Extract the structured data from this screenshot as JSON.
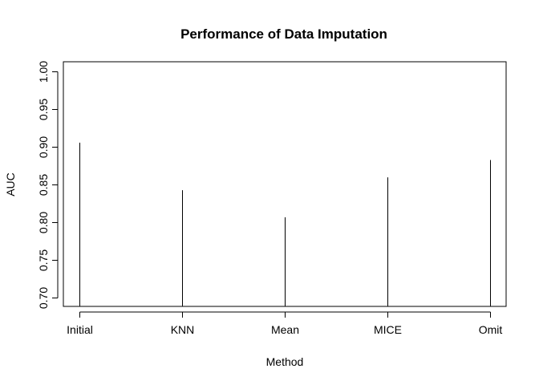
{
  "chart_data": {
    "type": "bar",
    "title": "Performance of Data Imputation",
    "xlabel": "Method",
    "ylabel": "AUC",
    "categories": [
      "Initial",
      "KNN",
      "Mean",
      "MICE",
      "Omit"
    ],
    "values": [
      0.906,
      0.843,
      0.807,
      0.86,
      0.883
    ],
    "ylim": [
      0.7,
      1.0
    ],
    "yticks": [
      "0.70",
      "0.75",
      "0.80",
      "0.85",
      "0.90",
      "0.95",
      "1.00"
    ],
    "grid": false,
    "legend": "none",
    "bar_style": "thin vertical line",
    "colors": {
      "bar": "#000000",
      "axis": "#000000",
      "background": "#ffffff"
    }
  }
}
